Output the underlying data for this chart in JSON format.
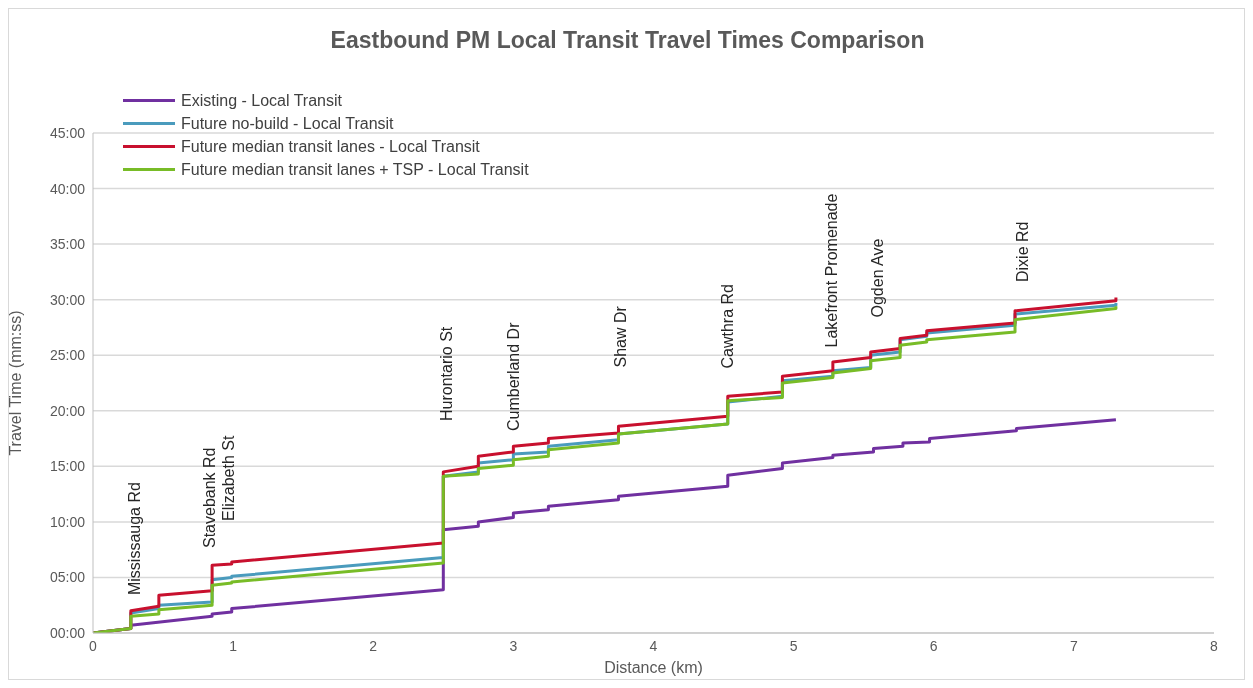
{
  "chart_data": {
    "type": "line",
    "title": "Eastbound PM Local Transit Travel Times Comparison",
    "xlabel": "Distance (km)",
    "ylabel": "Travel Time (mm:ss)",
    "xlim": [
      0,
      8
    ],
    "xticks": [
      0,
      1,
      2,
      3,
      4,
      5,
      6,
      7,
      8
    ],
    "ylim": [
      0,
      45
    ],
    "yticks": [
      {
        "value": 0,
        "label": "00:00"
      },
      {
        "value": 5,
        "label": "05:00"
      },
      {
        "value": 10,
        "label": "10:00"
      },
      {
        "value": 15,
        "label": "15:00"
      },
      {
        "value": 20,
        "label": "20:00"
      },
      {
        "value": 25,
        "label": "25:00"
      },
      {
        "value": 30,
        "label": "30:00"
      },
      {
        "value": 35,
        "label": "35:00"
      },
      {
        "value": 40,
        "label": "40:00"
      },
      {
        "value": 45,
        "label": "45:00"
      }
    ],
    "grid": "y",
    "legend": "top left",
    "marker": "none",
    "line_style": "solid",
    "series": [
      {
        "name": "Existing - Local Transit",
        "color": "#7030a0",
        "x": [
          0,
          0.27,
          0.27,
          0.85,
          0.85,
          0.99,
          0.99,
          2.5,
          2.5,
          2.75,
          2.75,
          3.0,
          3.0,
          3.25,
          3.25,
          3.75,
          3.75,
          4.53,
          4.53,
          4.92,
          4.92,
          5.28,
          5.28,
          5.57,
          5.57,
          5.78,
          5.78,
          5.97,
          5.97,
          6.59,
          6.59,
          7.3
        ],
        "values": [
          0,
          0.4,
          0.7,
          1.5,
          1.7,
          1.9,
          2.2,
          3.9,
          9.3,
          9.6,
          10.0,
          10.4,
          10.8,
          11.1,
          11.4,
          12.0,
          12.3,
          13.2,
          14.2,
          14.8,
          15.3,
          15.8,
          16.0,
          16.3,
          16.6,
          16.8,
          17.1,
          17.2,
          17.5,
          18.2,
          18.4,
          19.2
        ]
      },
      {
        "name": "Future no-build - Local Transit",
        "color": "#4a9bbd",
        "x": [
          0,
          0.27,
          0.27,
          0.47,
          0.47,
          0.85,
          0.85,
          0.99,
          0.99,
          2.5,
          2.5,
          2.75,
          2.75,
          3.0,
          3.0,
          3.25,
          3.25,
          3.75,
          3.75,
          4.53,
          4.53,
          4.92,
          4.92,
          5.28,
          5.28,
          5.55,
          5.55,
          5.76,
          5.76,
          5.95,
          5.95,
          6.58,
          6.58,
          7.3,
          7.3
        ],
        "values": [
          0,
          0.4,
          1.8,
          2.2,
          2.5,
          2.8,
          4.8,
          5.0,
          5.1,
          6.8,
          14.1,
          14.5,
          15.3,
          15.6,
          16.1,
          16.3,
          16.8,
          17.4,
          17.9,
          18.8,
          20.8,
          21.3,
          22.7,
          23.1,
          23.6,
          23.9,
          25.0,
          25.3,
          26.4,
          26.7,
          27.0,
          27.7,
          28.7,
          29.5,
          29.7
        ]
      },
      {
        "name": "Future median transit lanes - Local Transit",
        "color": "#c8102e",
        "x": [
          0,
          0.27,
          0.27,
          0.47,
          0.47,
          0.85,
          0.85,
          0.99,
          0.99,
          2.5,
          2.5,
          2.75,
          2.75,
          3.0,
          3.0,
          3.25,
          3.25,
          3.75,
          3.75,
          4.53,
          4.53,
          4.92,
          4.92,
          5.28,
          5.28,
          5.55,
          5.55,
          5.76,
          5.76,
          5.95,
          5.95,
          6.58,
          6.58,
          7.3,
          7.3
        ],
        "values": [
          0,
          0.4,
          2.0,
          2.4,
          3.4,
          3.8,
          6.1,
          6.2,
          6.4,
          8.1,
          14.5,
          15.0,
          15.9,
          16.3,
          16.8,
          17.1,
          17.5,
          18.0,
          18.6,
          19.5,
          21.3,
          21.7,
          23.1,
          23.6,
          24.4,
          24.8,
          25.3,
          25.6,
          26.5,
          26.8,
          27.2,
          27.9,
          29.0,
          29.9,
          30.2
        ]
      },
      {
        "name": "Future median transit lanes + TSP - Local Transit",
        "color": "#78bc27",
        "x": [
          0,
          0.27,
          0.27,
          0.47,
          0.47,
          0.85,
          0.85,
          0.99,
          0.99,
          2.5,
          2.5,
          2.75,
          2.75,
          3.0,
          3.0,
          3.25,
          3.25,
          3.75,
          3.75,
          4.53,
          4.53,
          4.92,
          4.92,
          5.28,
          5.28,
          5.55,
          5.55,
          5.76,
          5.76,
          5.95,
          5.95,
          6.58,
          6.58,
          7.3,
          7.3
        ],
        "values": [
          0,
          0.4,
          1.5,
          1.7,
          2.1,
          2.5,
          4.3,
          4.5,
          4.6,
          6.3,
          14.1,
          14.3,
          14.8,
          15.1,
          15.6,
          15.9,
          16.5,
          17.1,
          17.9,
          18.8,
          20.9,
          21.2,
          22.5,
          23.0,
          23.4,
          23.8,
          24.5,
          24.8,
          25.9,
          26.2,
          26.4,
          27.1,
          28.2,
          29.2,
          29.4
        ]
      }
    ],
    "annotations": [
      "Mississauga Rd",
      "Stavebank Rd",
      "Elizabeth St",
      "Hurontario St",
      "Cumberland Dr",
      "Shaw Dr",
      "Cawthra Rd",
      "Lakefront Promenade",
      "Ogden Ave",
      "Dixie Rd"
    ]
  }
}
